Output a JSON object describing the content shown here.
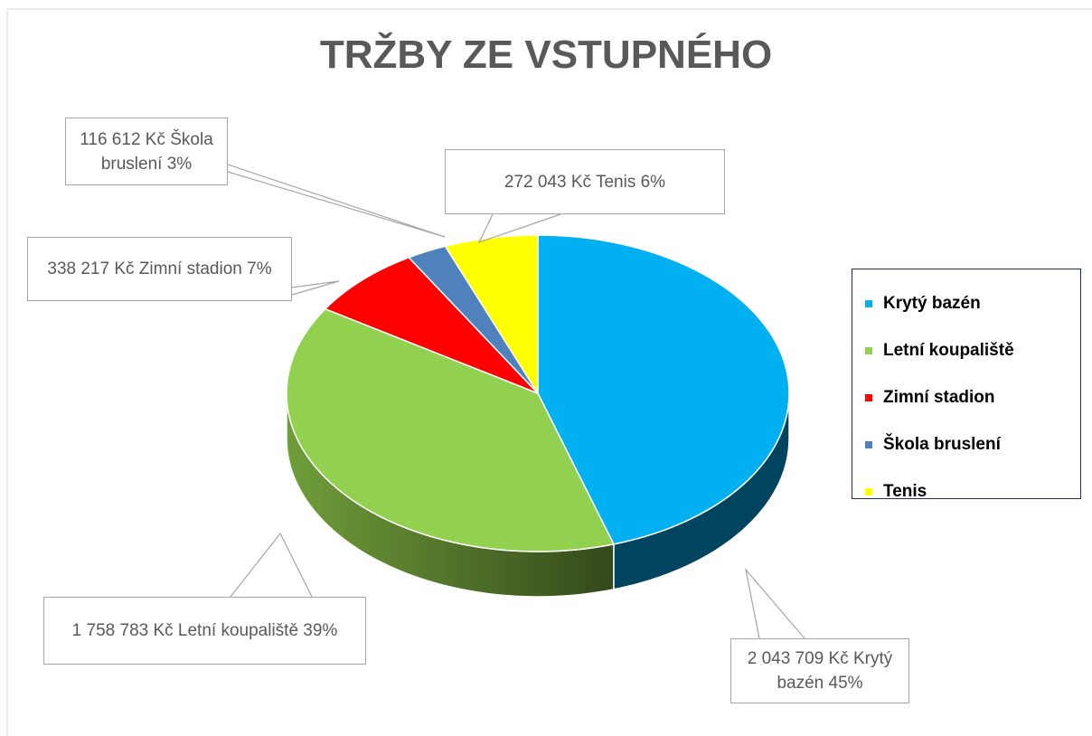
{
  "chart_data": {
    "type": "pie",
    "title": "TRŽBY ZE VSTUPNÉHO",
    "categories": [
      "Krytý bazén",
      "Letní koupaliště",
      "Zimní stadion",
      "Škola bruslení",
      "Tenis"
    ],
    "values": [
      2043709,
      1758783,
      338217,
      116612,
      272043
    ],
    "value_labels": [
      "2 043 709 Kč Krytý bazén 45%",
      "1 758 783 Kč Letní koupaliště 39%",
      "338 217 Kč Zimní stadion 7%",
      "116 612 Kč Škola bruslení 3%",
      "272 043 Kč Tenis 6%"
    ],
    "colors": [
      "#00b0f0",
      "#92d050",
      "#ff0000",
      "#4f81bd",
      "#ffff00"
    ],
    "legend": "right"
  }
}
